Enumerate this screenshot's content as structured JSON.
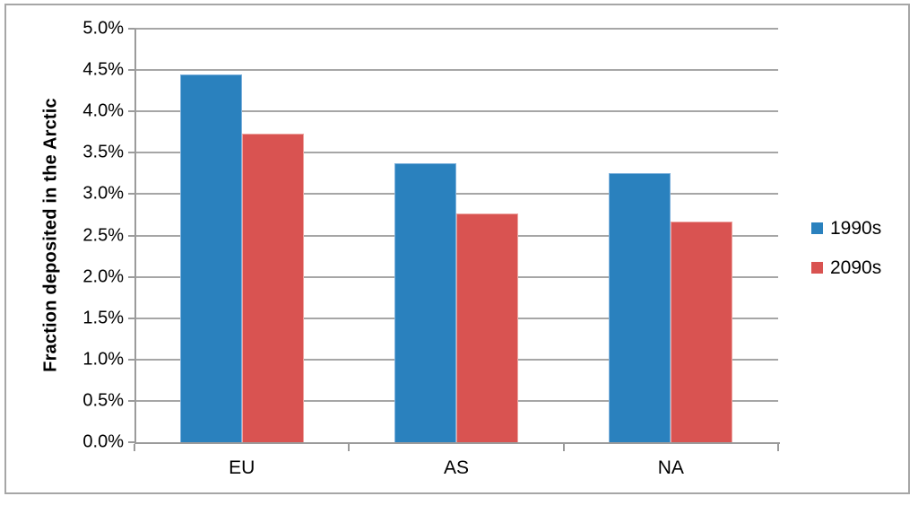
{
  "chart_data": {
    "type": "bar",
    "title": "",
    "xlabel": "",
    "ylabel": "Fraction deposited in the Arctic",
    "categories": [
      "EU",
      "AS",
      "NA"
    ],
    "series": [
      {
        "name": "1990s",
        "color": "#2a81be",
        "border_color": "#7fb2dc",
        "values": [
          4.45,
          3.37,
          3.25
        ]
      },
      {
        "name": "2090s",
        "color": "#d95351",
        "border_color": "#eda4a0",
        "values": [
          3.73,
          2.77,
          2.67
        ]
      }
    ],
    "ylim": [
      0,
      5
    ],
    "ytick_step": 0.5,
    "ytick_labels": [
      "0.0%",
      "0.5%",
      "1.0%",
      "1.5%",
      "2.0%",
      "2.5%",
      "3.0%",
      "3.5%",
      "4.0%",
      "4.5%",
      "5.0%"
    ],
    "grid": true,
    "legend_position": "right",
    "units": "percent"
  },
  "colors": {
    "grid": "#a6a6a6",
    "axis": "#9b9b9b",
    "frame": "#a6a6a6",
    "text": "#000000",
    "background": "#ffffff"
  }
}
